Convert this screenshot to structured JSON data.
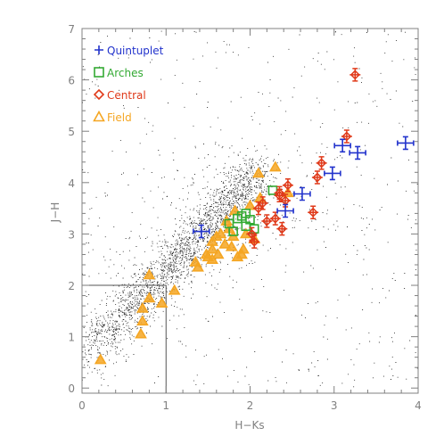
{
  "chart_data": {
    "type": "scatter",
    "xlabel": "H−Ks",
    "ylabel": "J−H",
    "xlim": [
      0,
      4
    ],
    "ylim": [
      -0.1,
      7
    ],
    "xticks": [
      "0",
      "1",
      "2",
      "3",
      "4"
    ],
    "yticks": [
      "0",
      "1",
      "2",
      "3",
      "4",
      "5",
      "6",
      "7"
    ],
    "legend_position": "top-left",
    "background_density": "dense black dots along diagonal sequence",
    "selection_box": {
      "x_max": 1,
      "y_max": 2
    },
    "series": [
      {
        "name": "Quintuplet",
        "marker": "plus-errorbar",
        "color": "#2233cc",
        "points": [
          [
            1.42,
            3.05
          ],
          [
            2.42,
            3.45
          ],
          [
            2.62,
            3.78
          ],
          [
            2.98,
            4.18
          ],
          [
            3.1,
            4.72
          ],
          [
            3.28,
            4.58
          ],
          [
            3.85,
            4.77
          ]
        ]
      },
      {
        "name": "Arches",
        "marker": "square",
        "color": "#33aa33",
        "points": [
          [
            1.75,
            3.2
          ],
          [
            1.85,
            3.3
          ],
          [
            1.9,
            3.35
          ],
          [
            1.95,
            3.4
          ],
          [
            2.0,
            3.28
          ],
          [
            1.8,
            3.05
          ],
          [
            2.27,
            3.85
          ],
          [
            1.95,
            3.15
          ],
          [
            2.05,
            3.1
          ]
        ]
      },
      {
        "name": "Central",
        "marker": "diamond-errorbar",
        "color": "#e03a1a",
        "points": [
          [
            2.1,
            3.5
          ],
          [
            2.15,
            3.6
          ],
          [
            2.35,
            3.75
          ],
          [
            2.42,
            3.65
          ],
          [
            2.45,
            3.95
          ],
          [
            2.38,
            3.1
          ],
          [
            2.2,
            3.25
          ],
          [
            2.3,
            3.3
          ],
          [
            2.02,
            3.0
          ],
          [
            2.05,
            2.85
          ],
          [
            2.75,
            3.42
          ],
          [
            2.8,
            4.1
          ],
          [
            2.85,
            4.38
          ],
          [
            3.15,
            4.9
          ],
          [
            3.25,
            6.1
          ],
          [
            2.35,
            3.8
          ]
        ]
      },
      {
        "name": "Field",
        "marker": "triangle",
        "color": "#f5a623",
        "points": [
          [
            0.22,
            0.55
          ],
          [
            0.7,
            1.05
          ],
          [
            0.72,
            1.3
          ],
          [
            0.72,
            1.55
          ],
          [
            0.8,
            1.75
          ],
          [
            0.95,
            1.65
          ],
          [
            1.1,
            1.9
          ],
          [
            0.8,
            2.2
          ],
          [
            1.35,
            2.45
          ],
          [
            1.38,
            2.35
          ],
          [
            1.5,
            2.55
          ],
          [
            1.55,
            2.5
          ],
          [
            1.55,
            2.85
          ],
          [
            1.6,
            2.95
          ],
          [
            1.65,
            3.0
          ],
          [
            1.55,
            2.7
          ],
          [
            1.7,
            2.8
          ],
          [
            1.75,
            3.1
          ],
          [
            1.78,
            2.75
          ],
          [
            1.8,
            2.95
          ],
          [
            1.82,
            3.45
          ],
          [
            1.85,
            2.55
          ],
          [
            1.9,
            2.6
          ],
          [
            1.95,
            3.0
          ],
          [
            2.0,
            3.55
          ],
          [
            2.05,
            2.9
          ],
          [
            2.1,
            4.18
          ],
          [
            2.3,
            4.3
          ],
          [
            2.45,
            3.8
          ],
          [
            1.48,
            2.6
          ],
          [
            1.62,
            2.6
          ],
          [
            1.72,
            3.25
          ],
          [
            1.92,
            2.7
          ],
          [
            2.12,
            3.7
          ]
        ]
      }
    ]
  }
}
